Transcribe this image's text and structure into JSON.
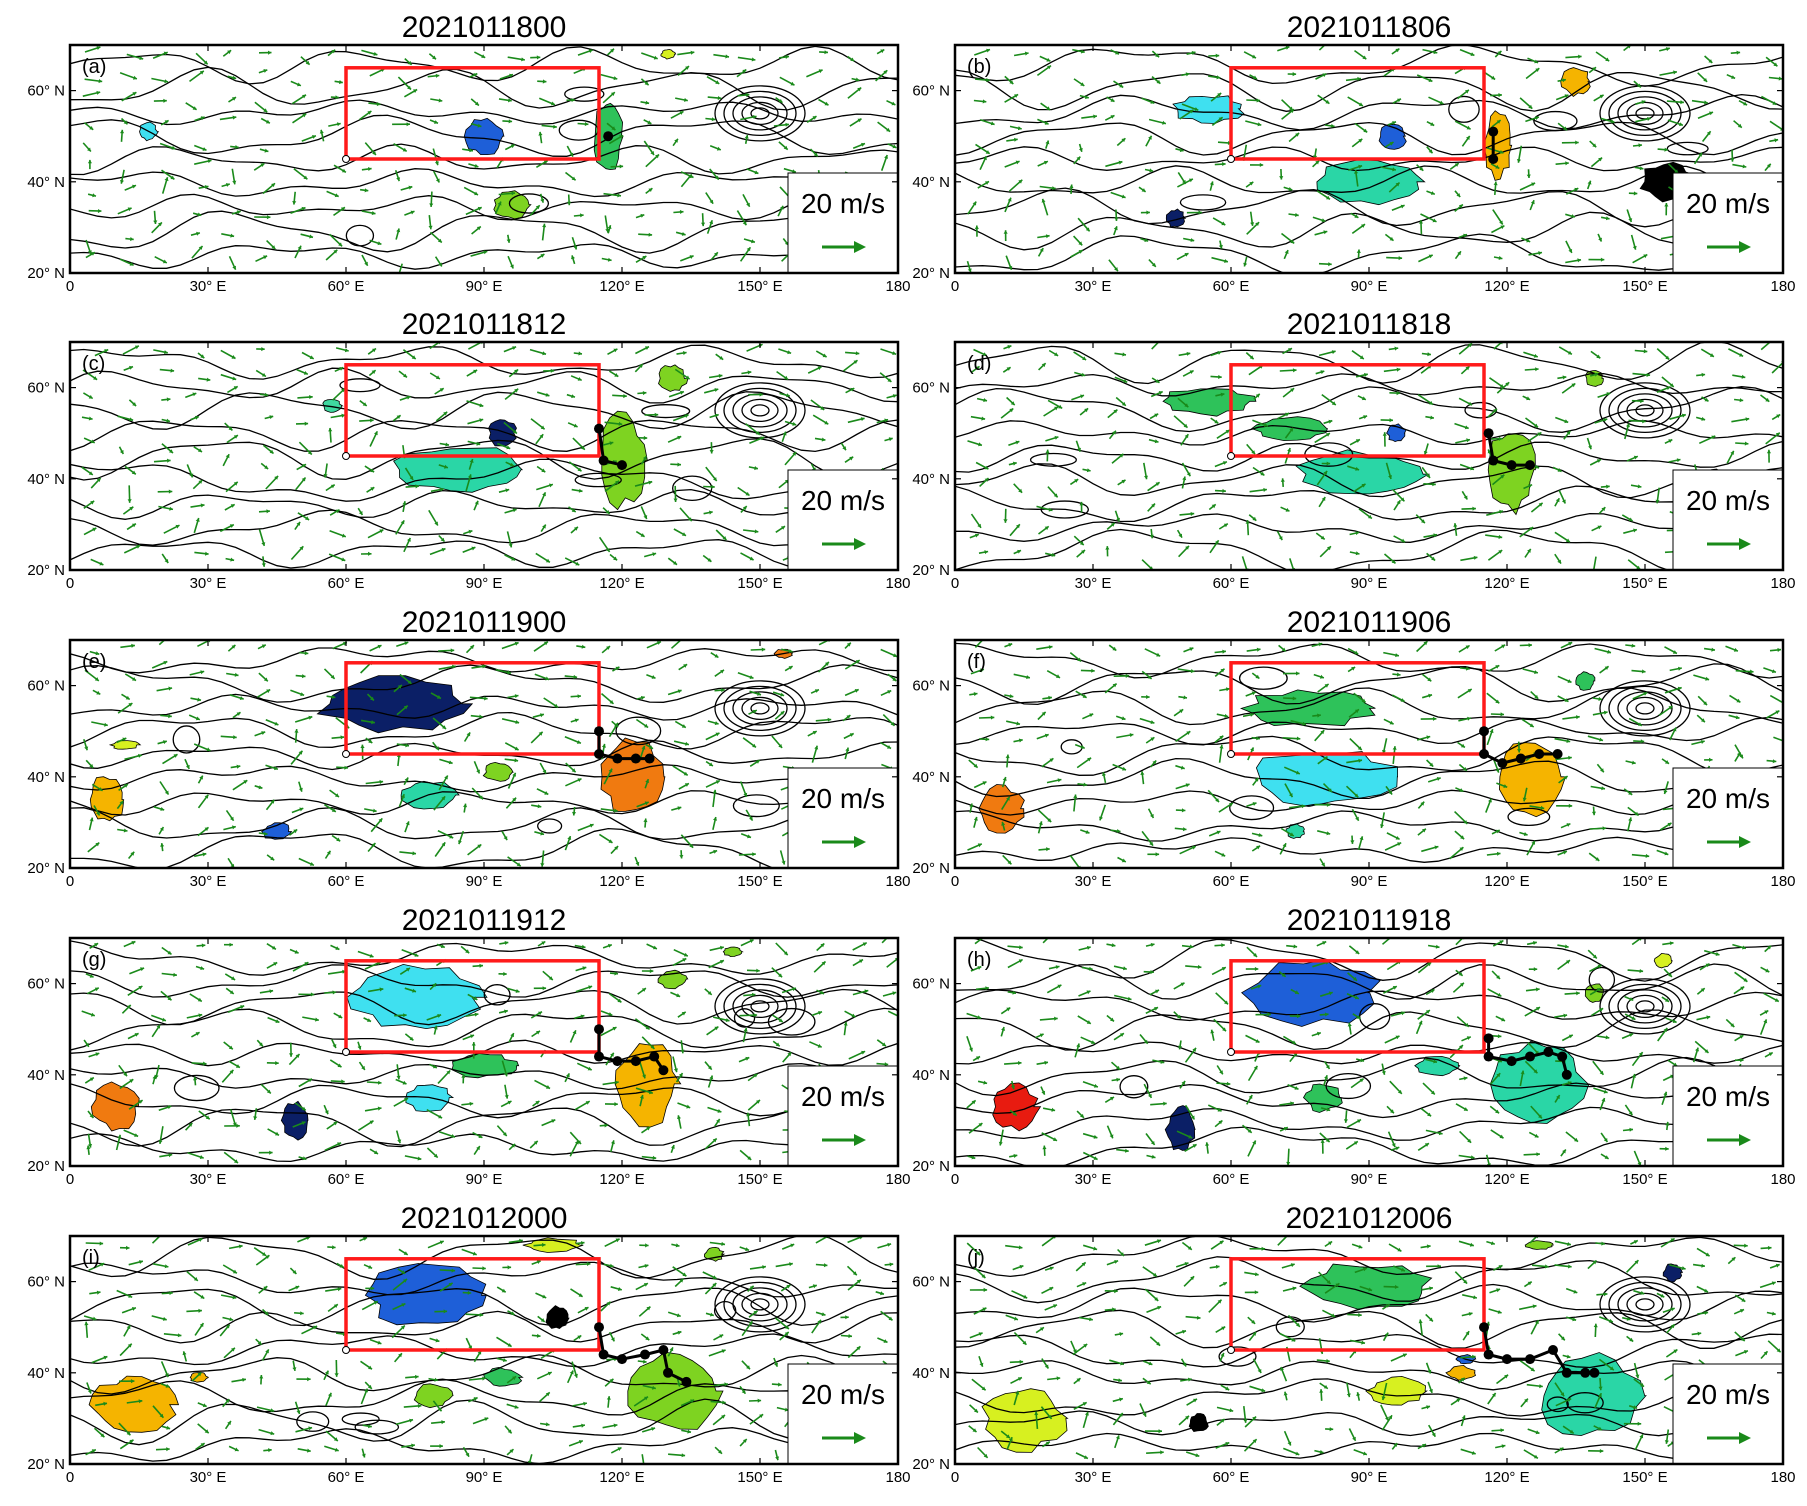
{
  "panels": [
    {
      "id": "a",
      "letter": "(a)",
      "title": "2021011800",
      "blobs": [
        {
          "color": "#1e5fd8",
          "lon": 90,
          "lat": 50,
          "rlon": 4,
          "rlat": 4
        },
        {
          "color": "#2ec25a",
          "lon": 117,
          "lat": 50,
          "rlon": 3,
          "rlat": 8
        },
        {
          "color": "#7ed321",
          "lon": 96,
          "lat": 35,
          "rlon": 4,
          "rlat": 3
        },
        {
          "color": "#3fe0f0",
          "lon": 17,
          "lat": 51,
          "rlon": 2,
          "rlat": 2
        },
        {
          "color": "#d7f020",
          "lon": 130,
          "lat": 68,
          "rlon": 1.5,
          "rlat": 1
        }
      ],
      "track": [
        [
          117,
          50
        ]
      ]
    },
    {
      "id": "b",
      "letter": "(b)",
      "title": "2021011806",
      "blobs": [
        {
          "color": "#3fe0f0",
          "lon": 55,
          "lat": 56,
          "rlon": 8,
          "rlat": 3
        },
        {
          "color": "#1e5fd8",
          "lon": 95,
          "lat": 50,
          "rlon": 3,
          "rlat": 3
        },
        {
          "color": "#f5b400",
          "lon": 118,
          "lat": 48,
          "rlon": 3,
          "rlat": 7
        },
        {
          "color": "#f5b400",
          "lon": 135,
          "lat": 62,
          "rlon": 3,
          "rlat": 3
        },
        {
          "color": "#2ad6a6",
          "lon": 90,
          "lat": 40,
          "rlon": 12,
          "rlat": 5
        },
        {
          "color": "#000000",
          "lon": 155,
          "lat": 40,
          "rlon": 6,
          "rlat": 4
        },
        {
          "color": "#0b1f66",
          "lon": 48,
          "lat": 32,
          "rlon": 2,
          "rlat": 2
        }
      ],
      "track": [
        [
          117,
          51
        ],
        [
          117,
          45
        ]
      ]
    },
    {
      "id": "c",
      "letter": "(c)",
      "title": "2021011812",
      "blobs": [
        {
          "color": "#0b1f66",
          "lon": 94,
          "lat": 50,
          "rlon": 3,
          "rlat": 3
        },
        {
          "color": "#2ad6a6",
          "lon": 85,
          "lat": 42,
          "rlon": 14,
          "rlat": 5
        },
        {
          "color": "#7ed321",
          "lon": 120,
          "lat": 44,
          "rlon": 5,
          "rlat": 10
        },
        {
          "color": "#7ed321",
          "lon": 131,
          "lat": 62,
          "rlon": 3,
          "rlat": 3
        },
        {
          "color": "#3fd8a0",
          "lon": 57,
          "lat": 56,
          "rlon": 2,
          "rlat": 1.5
        }
      ],
      "track": [
        [
          115,
          51
        ],
        [
          116,
          44
        ],
        [
          120,
          43
        ]
      ]
    },
    {
      "id": "d",
      "letter": "(d)",
      "title": "2021011818",
      "blobs": [
        {
          "color": "#2ec25a",
          "lon": 55,
          "lat": 57,
          "rlon": 10,
          "rlat": 3
        },
        {
          "color": "#2ec25a",
          "lon": 73,
          "lat": 51,
          "rlon": 8,
          "rlat": 2.5
        },
        {
          "color": "#1e5fd8",
          "lon": 96,
          "lat": 50,
          "rlon": 2,
          "rlat": 2
        },
        {
          "color": "#2ad6a6",
          "lon": 88,
          "lat": 41,
          "rlon": 14,
          "rlat": 5
        },
        {
          "color": "#7ed321",
          "lon": 121,
          "lat": 42,
          "rlon": 5,
          "rlat": 9
        },
        {
          "color": "#7ed321",
          "lon": 139,
          "lat": 62,
          "rlon": 2,
          "rlat": 2
        },
        {
          "color": "#000000",
          "lon": 165,
          "lat": 40,
          "rlon": 3,
          "rlat": 2
        }
      ],
      "track": [
        [
          116,
          50
        ],
        [
          117,
          44
        ],
        [
          121,
          43
        ],
        [
          125,
          43
        ]
      ]
    },
    {
      "id": "e",
      "letter": "(e)",
      "title": "2021011900",
      "blobs": [
        {
          "color": "#0b1f66",
          "lon": 70,
          "lat": 56,
          "rlon": 16,
          "rlat": 6
        },
        {
          "color": "#f07a10",
          "lon": 122,
          "lat": 40,
          "rlon": 7,
          "rlat": 8
        },
        {
          "color": "#f5b400",
          "lon": 8,
          "lat": 35,
          "rlon": 4,
          "rlat": 5
        },
        {
          "color": "#2ad6a6",
          "lon": 78,
          "lat": 36,
          "rlon": 6,
          "rlat": 3
        },
        {
          "color": "#1e5fd8",
          "lon": 45,
          "lat": 28,
          "rlon": 3,
          "rlat": 2
        },
        {
          "color": "#7ed321",
          "lon": 93,
          "lat": 41,
          "rlon": 3,
          "rlat": 2
        },
        {
          "color": "#f07a10",
          "lon": 155,
          "lat": 67,
          "rlon": 2,
          "rlat": 1
        },
        {
          "color": "#d7f020",
          "lon": 12,
          "lat": 47,
          "rlon": 3,
          "rlat": 1
        }
      ],
      "track": [
        [
          115,
          50
        ],
        [
          115,
          45
        ],
        [
          119,
          44
        ],
        [
          123,
          44
        ],
        [
          126,
          44
        ]
      ]
    },
    {
      "id": "f",
      "letter": "(f)",
      "title": "2021011906",
      "blobs": [
        {
          "color": "#2ec25a",
          "lon": 77,
          "lat": 55,
          "rlon": 14,
          "rlat": 4
        },
        {
          "color": "#3fe0f0",
          "lon": 80,
          "lat": 40,
          "rlon": 16,
          "rlat": 6
        },
        {
          "color": "#f5b400",
          "lon": 125,
          "lat": 40,
          "rlon": 7,
          "rlat": 8
        },
        {
          "color": "#f07a10",
          "lon": 10,
          "lat": 33,
          "rlon": 5,
          "rlat": 5
        },
        {
          "color": "#2ec25a",
          "lon": 137,
          "lat": 61,
          "rlon": 2,
          "rlat": 2
        },
        {
          "color": "#2ad6a6",
          "lon": 74,
          "lat": 28,
          "rlon": 2,
          "rlat": 1.5
        }
      ],
      "track": [
        [
          115,
          50
        ],
        [
          115,
          45
        ],
        [
          119,
          43
        ],
        [
          123,
          44
        ],
        [
          127,
          45
        ],
        [
          131,
          45
        ]
      ]
    },
    {
      "id": "g",
      "letter": "(g)",
      "title": "2021011912",
      "blobs": [
        {
          "color": "#3fe0f0",
          "lon": 75,
          "lat": 57,
          "rlon": 14,
          "rlat": 7
        },
        {
          "color": "#f5b400",
          "lon": 125,
          "lat": 38,
          "rlon": 7,
          "rlat": 9
        },
        {
          "color": "#f07a10",
          "lon": 10,
          "lat": 33,
          "rlon": 5,
          "rlat": 5
        },
        {
          "color": "#0b1f66",
          "lon": 49,
          "lat": 30,
          "rlon": 3,
          "rlat": 4
        },
        {
          "color": "#3fe0f0",
          "lon": 78,
          "lat": 35,
          "rlon": 5,
          "rlat": 3
        },
        {
          "color": "#2ec25a",
          "lon": 90,
          "lat": 42,
          "rlon": 7,
          "rlat": 2.5
        },
        {
          "color": "#7ed321",
          "lon": 131,
          "lat": 61,
          "rlon": 3,
          "rlat": 2
        },
        {
          "color": "#7ed321",
          "lon": 144,
          "lat": 67,
          "rlon": 2,
          "rlat": 1
        }
      ],
      "track": [
        [
          115,
          50
        ],
        [
          115,
          44
        ],
        [
          119,
          43
        ],
        [
          123,
          43
        ],
        [
          127,
          44
        ],
        [
          129,
          41
        ]
      ]
    },
    {
      "id": "h",
      "letter": "(h)",
      "title": "2021011918",
      "blobs": [
        {
          "color": "#1e5fd8",
          "lon": 78,
          "lat": 58,
          "rlon": 14,
          "rlat": 7
        },
        {
          "color": "#2ad6a6",
          "lon": 127,
          "lat": 38,
          "rlon": 10,
          "rlat": 9
        },
        {
          "color": "#e81b10",
          "lon": 13,
          "lat": 33,
          "rlon": 5,
          "rlat": 5
        },
        {
          "color": "#0b1f66",
          "lon": 49,
          "lat": 28,
          "rlon": 3,
          "rlat": 5
        },
        {
          "color": "#2ec25a",
          "lon": 80,
          "lat": 35,
          "rlon": 4,
          "rlat": 3
        },
        {
          "color": "#2ad6a6",
          "lon": 105,
          "lat": 42,
          "rlon": 5,
          "rlat": 2
        },
        {
          "color": "#d7f020",
          "lon": 154,
          "lat": 65,
          "rlon": 2,
          "rlat": 1.5
        },
        {
          "color": "#7ed321",
          "lon": 139,
          "lat": 58,
          "rlon": 2,
          "rlat": 2
        }
      ],
      "track": [
        [
          116,
          48
        ],
        [
          116,
          44
        ],
        [
          121,
          43
        ],
        [
          125,
          44
        ],
        [
          129,
          45
        ],
        [
          132,
          44
        ],
        [
          133,
          40
        ]
      ]
    },
    {
      "id": "i",
      "letter": "(i)",
      "title": "2021012000",
      "blobs": [
        {
          "color": "#1e5fd8",
          "lon": 78,
          "lat": 57,
          "rlon": 13,
          "rlat": 7
        },
        {
          "color": "#7ed321",
          "lon": 131,
          "lat": 36,
          "rlon": 10,
          "rlat": 9
        },
        {
          "color": "#f5b400",
          "lon": 14,
          "lat": 33,
          "rlon": 9,
          "rlat": 6
        },
        {
          "color": "#000000",
          "lon": 106,
          "lat": 52,
          "rlon": 2.5,
          "rlat": 2.5
        },
        {
          "color": "#7ed321",
          "lon": 79,
          "lat": 35,
          "rlon": 4,
          "rlat": 2.5
        },
        {
          "color": "#2ec25a",
          "lon": 94,
          "lat": 39,
          "rlon": 4,
          "rlat": 2
        },
        {
          "color": "#d7f020",
          "lon": 105,
          "lat": 68,
          "rlon": 6,
          "rlat": 1.5
        },
        {
          "color": "#7ed321",
          "lon": 140,
          "lat": 66,
          "rlon": 2,
          "rlat": 1.5
        },
        {
          "color": "#f5b400",
          "lon": 28,
          "lat": 39,
          "rlon": 2,
          "rlat": 1
        }
      ],
      "track": [
        [
          115,
          50
        ],
        [
          116,
          44
        ],
        [
          120,
          43
        ],
        [
          125,
          44
        ],
        [
          129,
          45
        ],
        [
          130,
          40
        ],
        [
          134,
          38
        ]
      ]
    },
    {
      "id": "j",
      "letter": "(j)",
      "title": "2021012006",
      "blobs": [
        {
          "color": "#2ec25a",
          "lon": 90,
          "lat": 59,
          "rlon": 14,
          "rlat": 5
        },
        {
          "color": "#2ad6a6",
          "lon": 138,
          "lat": 35,
          "rlon": 11,
          "rlat": 9
        },
        {
          "color": "#d7f020",
          "lon": 15,
          "lat": 30,
          "rlon": 9,
          "rlat": 7
        },
        {
          "color": "#d7f020",
          "lon": 96,
          "lat": 36,
          "rlon": 6,
          "rlat": 3
        },
        {
          "color": "#f5b400",
          "lon": 110,
          "lat": 40,
          "rlon": 3,
          "rlat": 1.5
        },
        {
          "color": "#0b1f66",
          "lon": 156,
          "lat": 62,
          "rlon": 2,
          "rlat": 2
        },
        {
          "color": "#000000",
          "lon": 53,
          "lat": 29,
          "rlon": 2,
          "rlat": 2
        },
        {
          "color": "#7ed321",
          "lon": 127,
          "lat": 68,
          "rlon": 3,
          "rlat": 1
        },
        {
          "color": "#1e5fd8",
          "lon": 111,
          "lat": 43,
          "rlon": 2,
          "rlat": 1
        }
      ],
      "track": [
        [
          115,
          50
        ],
        [
          116,
          44
        ],
        [
          120,
          43
        ],
        [
          125,
          43
        ],
        [
          130,
          45
        ],
        [
          133,
          40
        ],
        [
          137,
          40
        ],
        [
          139,
          40
        ]
      ]
    }
  ],
  "box": {
    "lon_min": 60,
    "lon_max": 115,
    "lat_min": 45,
    "lat_max": 65,
    "color": "#ff1a1a"
  },
  "axes": {
    "lon_range": [
      0,
      180
    ],
    "lat_range": [
      20,
      70
    ],
    "x_ticks": [
      "0",
      "30° E",
      "60° E",
      "90° E",
      "120° E",
      "150° E",
      "180"
    ],
    "y_ticks": [
      "20° N",
      "40° N",
      "60° N"
    ]
  },
  "legend": {
    "label": "20 m/s",
    "vector_color": "#1a8a1a"
  },
  "contour_color": "#000000",
  "track_color": "#000000"
}
